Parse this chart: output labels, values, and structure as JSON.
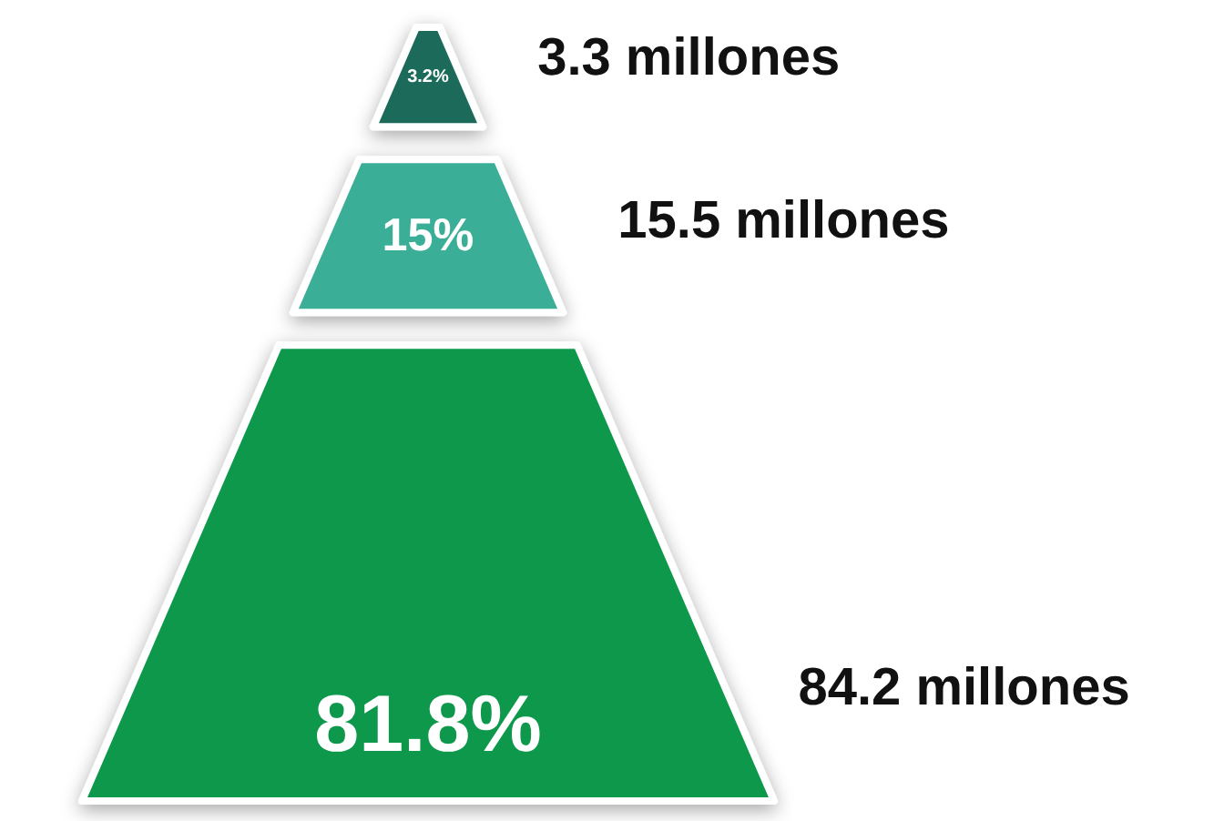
{
  "chart_data": {
    "type": "other",
    "categories": [
      "3.3 millones",
      "15.5 millones",
      "84.2 millones"
    ],
    "values": [
      3.2,
      15,
      81.8
    ],
    "value_labels": [
      "3.2%",
      "15%",
      "81.8%"
    ],
    "colors": [
      "#1b6b5a",
      "#3aae98",
      "#09984c"
    ]
  }
}
